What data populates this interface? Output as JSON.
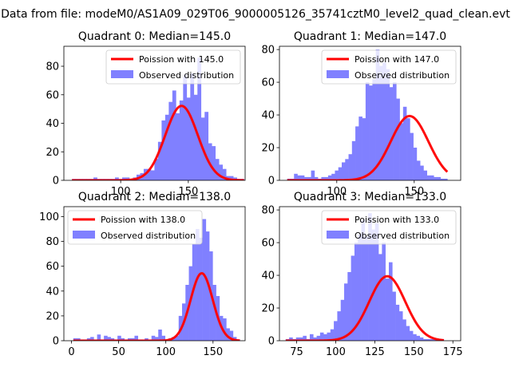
{
  "suptitle": "Data from file: modeM0/AS1A09_029T06_9000005126_35741cztM0_level2_quad_clean.evt",
  "colors": {
    "bars": "#8080ff",
    "fit": "#ff0000",
    "axis": "#000000"
  },
  "chart_data": [
    {
      "type": "bar+line",
      "title": "Quadrant 0: Median=145.0",
      "xlim": [
        58,
        192
      ],
      "ylim": [
        0,
        94
      ],
      "xticks": [
        100,
        150
      ],
      "yticks": [
        0,
        20,
        40,
        60,
        80
      ],
      "legend": [
        "Poission with 145.0",
        "Observed distribution"
      ],
      "fit": {
        "label": "Poission with 145.0",
        "mean": 145.0,
        "scale": 1575
      },
      "hist": {
        "bin_edges_start": 64,
        "bin_width": 2.65,
        "values": [
          1,
          1,
          1,
          1,
          1,
          1,
          2,
          1,
          1,
          1,
          1,
          1,
          2,
          1,
          2,
          2,
          1,
          2,
          4,
          5,
          8,
          8,
          7,
          15,
          27,
          42,
          46,
          55,
          63,
          47,
          56,
          74,
          58,
          75,
          60,
          86,
          44,
          48,
          26,
          24,
          15,
          11,
          8,
          3,
          3,
          2,
          1,
          1
        ]
      }
    },
    {
      "type": "bar+line",
      "title": "Quadrant 1: Median=147.0",
      "xlim": [
        63,
        180
      ],
      "ylim": [
        0,
        82
      ],
      "xticks": [
        100,
        150
      ],
      "yticks": [
        0,
        20,
        40,
        60,
        80
      ],
      "legend": [
        "Poission with 147.0",
        "Observed distribution"
      ],
      "fit": {
        "label": "Poission with 147.0",
        "mean": 147.0,
        "scale": 1195
      },
      "hist": {
        "bin_edges_start": 68,
        "bin_width": 2.2,
        "values": [
          1,
          1,
          4,
          3,
          3,
          2,
          2,
          6,
          2,
          1,
          2,
          2,
          3,
          4,
          6,
          8,
          11,
          13,
          16,
          24,
          33,
          39,
          38,
          60,
          58,
          62,
          80,
          70,
          72,
          68,
          57,
          60,
          50,
          35,
          45,
          38,
          29,
          20,
          12,
          9,
          6,
          3,
          3,
          2,
          2,
          1,
          1
        ]
      }
    },
    {
      "type": "bar+line",
      "title": "Quadrant 2: Median=138.0",
      "xlim": [
        -8,
        184
      ],
      "ylim": [
        0,
        108
      ],
      "xticks": [
        0,
        50,
        100,
        150
      ],
      "yticks": [
        0,
        20,
        40,
        60,
        80,
        100
      ],
      "legend": [
        "Poission with 138.0",
        "Observed distribution"
      ],
      "fit": {
        "label": "Poission with 138.0",
        "mean": 138.0,
        "scale": 1600
      },
      "hist": {
        "bin_edges_start": 2,
        "bin_width": 3.6,
        "values": [
          2,
          2,
          1,
          1,
          2,
          3,
          1,
          5,
          1,
          4,
          3,
          2,
          1,
          4,
          2,
          1,
          2,
          2,
          4,
          1,
          1,
          2,
          1,
          4,
          3,
          9,
          4,
          1,
          2,
          3,
          4,
          20,
          30,
          45,
          60,
          78,
          90,
          83,
          98,
          88,
          72,
          45,
          36,
          20,
          18,
          10,
          8,
          3,
          1
        ]
      }
    },
    {
      "type": "bar+line",
      "title": "Quadrant 3: Median=133.0",
      "xlim": [
        64,
        180
      ],
      "ylim": [
        0,
        82
      ],
      "xticks": [
        75,
        100,
        125,
        150,
        175
      ],
      "yticks": [
        0,
        20,
        40,
        60,
        80
      ],
      "legend": [
        "Poission with 133.0",
        "Observed distribution"
      ],
      "fit": {
        "label": "Poission with 133.0",
        "mean": 133.0,
        "scale": 1140
      },
      "hist": {
        "bin_edges_start": 68,
        "bin_width": 2.2,
        "values": [
          1,
          2,
          1,
          2,
          2,
          3,
          1,
          4,
          2,
          3,
          5,
          4,
          5,
          7,
          12,
          18,
          25,
          35,
          42,
          52,
          60,
          65,
          74,
          64,
          78,
          68,
          72,
          53,
          60,
          38,
          48,
          30,
          22,
          18,
          13,
          9,
          6,
          4,
          3,
          2,
          1,
          1,
          1,
          1,
          1,
          1
        ]
      }
    }
  ]
}
